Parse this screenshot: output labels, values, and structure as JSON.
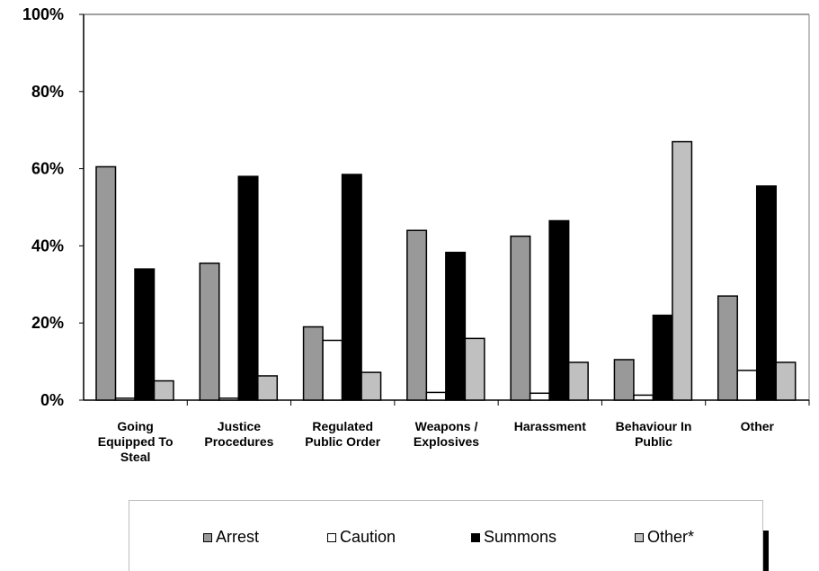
{
  "chart_data": {
    "type": "bar",
    "categories": [
      [
        "Going",
        "Equipped To",
        "Steal"
      ],
      [
        "Justice",
        "Procedures"
      ],
      [
        "Regulated",
        "Public Order"
      ],
      [
        "Weapons /",
        "Explosives"
      ],
      [
        "Harassment"
      ],
      [
        "Behaviour In",
        "Public"
      ],
      [
        "Other"
      ]
    ],
    "series": [
      {
        "name": "Arrest",
        "color": "#999999",
        "values": [
          60.5,
          35.5,
          19,
          44,
          42.5,
          10.5,
          27
        ]
      },
      {
        "name": "Caution",
        "color": "#ffffff",
        "values": [
          0.5,
          0.5,
          15.5,
          2,
          1.8,
          1.3,
          7.7
        ]
      },
      {
        "name": "Summons",
        "color": "#000000",
        "values": [
          34,
          58,
          58.5,
          38.3,
          46.5,
          22,
          55.5
        ]
      },
      {
        "name": "Other*",
        "color": "#c0c0c0",
        "values": [
          5,
          6.3,
          7.2,
          16,
          9.8,
          67,
          9.8
        ]
      }
    ],
    "y_ticks": [
      "0%",
      "20%",
      "40%",
      "60%",
      "80%",
      "100%"
    ],
    "ylim": [
      0,
      100
    ],
    "legend_position": "bottom",
    "grid": false
  }
}
